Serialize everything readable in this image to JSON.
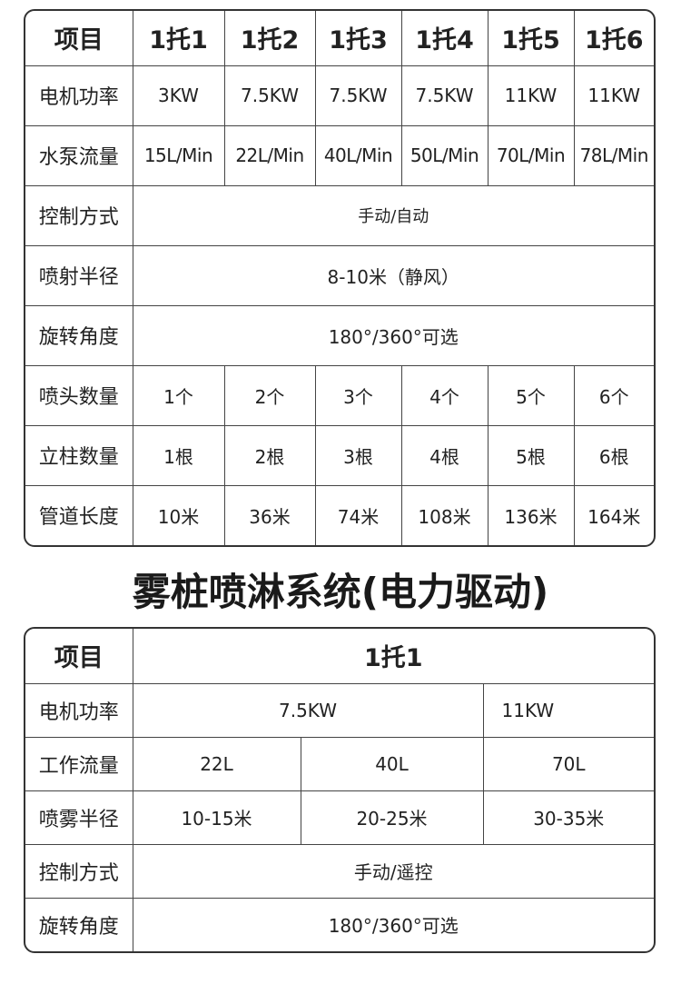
{
  "table1": {
    "header": [
      "项目",
      "1托1",
      "1托2",
      "1托3",
      "1托4",
      "1托5",
      "1托6"
    ],
    "rows": [
      {
        "label": "电机功率",
        "values": [
          "3KW",
          "7.5KW",
          "7.5KW",
          "7.5KW",
          "11KW",
          "11KW"
        ]
      },
      {
        "label": "水泵流量",
        "values": [
          "15L/Min",
          "22L/Min",
          "40L/Min",
          "50L/Min",
          "70L/Min",
          "78L/Min"
        ]
      },
      {
        "label": "控制方式",
        "merged": "手动/自动"
      },
      {
        "label": "喷射半径",
        "merged": "8-10米（静风）"
      },
      {
        "label": "旋转角度",
        "merged": "180°/360°可选"
      },
      {
        "label": "喷头数量",
        "values": [
          "1个",
          "2个",
          "3个",
          "4个",
          "5个",
          "6个"
        ]
      },
      {
        "label": "立柱数量",
        "values": [
          "1根",
          "2根",
          "3根",
          "4根",
          "5根",
          "6根"
        ]
      },
      {
        "label": "管道长度",
        "values": [
          "10米",
          "36米",
          "74米",
          "108米",
          "136米",
          "164米"
        ]
      }
    ]
  },
  "title": "雾桩喷淋系统(电力驱动)",
  "table2": {
    "header": [
      "项目",
      "1托1"
    ],
    "rows": [
      {
        "label": "电机功率",
        "values": [
          "7.5KW",
          "11KW"
        ]
      },
      {
        "label": "工作流量",
        "values": [
          "22L",
          "40L",
          "70L"
        ]
      },
      {
        "label": "喷雾半径",
        "values": [
          "10-15米",
          "20-25米",
          "30-35米"
        ]
      },
      {
        "label": "控制方式",
        "merged": "手动/遥控"
      },
      {
        "label": "旋转角度",
        "merged": "180°/360°可选"
      }
    ]
  }
}
